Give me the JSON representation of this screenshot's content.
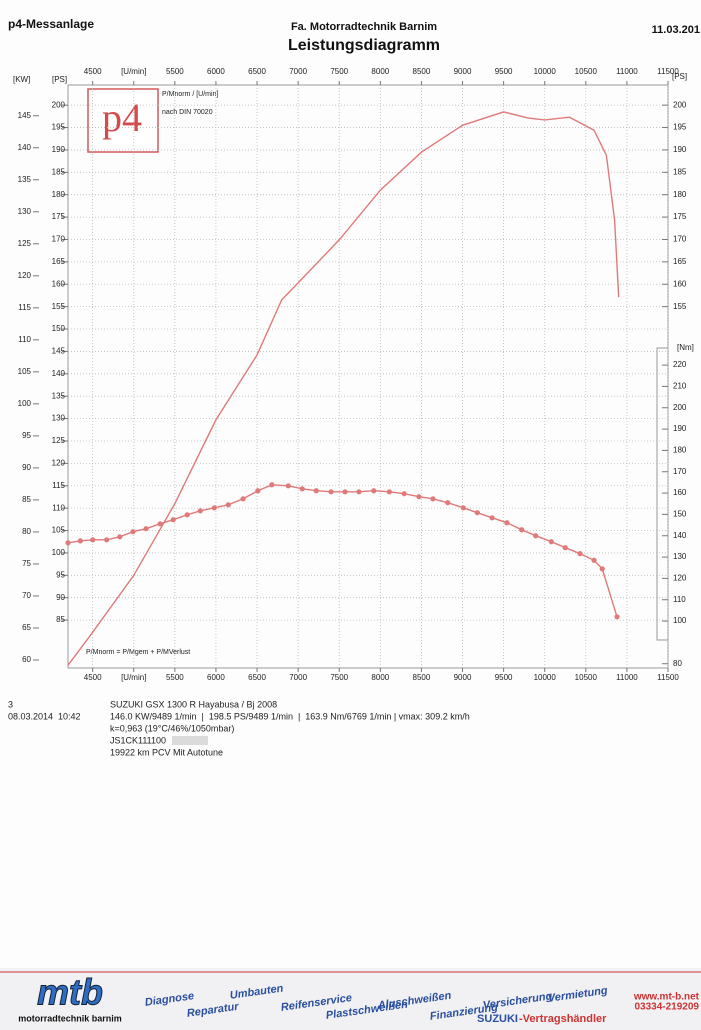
{
  "header": {
    "left": "p4-Messanlage",
    "company": "Fa. Motorradtechnik Barnim",
    "date": "11.03.201"
  },
  "logo": "p4",
  "chart_data": {
    "type": "line",
    "title": "Leistungsdiagramm",
    "grid": true,
    "xlim": [
      4200,
      11500
    ],
    "xticks": [
      4500,
      {
        "value": 5000,
        "label": "[U/min]"
      },
      5500,
      6000,
      6500,
      7000,
      7500,
      8000,
      8500,
      9000,
      9500,
      10000,
      10500,
      11000,
      11500
    ],
    "y_label": "[KW]",
    "ylim": [
      58.75,
      149.8
    ],
    "yticks": [
      145,
      140,
      135,
      130,
      125,
      120,
      115,
      110,
      105,
      100,
      95,
      90,
      85,
      80,
      75,
      70,
      65,
      60
    ],
    "y2_label": "[PS]",
    "y2lim": [
      74.3,
      204.5
    ],
    "y2ticks": [
      200,
      195,
      190,
      185,
      180,
      175,
      170,
      165,
      160,
      155,
      150,
      145,
      140,
      135,
      130,
      125,
      120,
      115,
      110,
      105,
      100,
      95,
      90,
      85
    ],
    "y2_label_right": "[PS]",
    "y2ticks_right": [
      200,
      195,
      190,
      185,
      180,
      175,
      170,
      165,
      160,
      155
    ],
    "y3_label": "[Nm]",
    "y3lim": [
      78,
      351.3
    ],
    "y3ticks": [
      220,
      210,
      200,
      190,
      180,
      170,
      160,
      150,
      140,
      130,
      120,
      110,
      100,
      80
    ],
    "annotations": [
      "nach DIN 70020",
      "P/Mnorm = P/Mgem + P/MVerlust"
    ],
    "series": [
      {
        "name": "P/Mnorm / [U/min]",
        "axis": "y2",
        "color": "#e07a7a",
        "x": [
          4200,
          4500,
          5000,
          5500,
          6000,
          6500,
          6800,
          7000,
          7500,
          8000,
          8500,
          9000,
          9500,
          9800,
          10000,
          10300,
          10600,
          10750,
          10850,
          10900
        ],
        "values": [
          74.9,
          82.3,
          95.0,
          111.0,
          129.7,
          144.2,
          156.5,
          160.3,
          169.9,
          181.0,
          189.5,
          195.5,
          198.5,
          197.1,
          196.7,
          197.3,
          194.4,
          188.8,
          174.3,
          157.1
        ]
      },
      {
        "axis": "y3",
        "color": "#e07a7a",
        "markers": true,
        "x": [
          4200,
          4350,
          4500,
          4670,
          4830,
          4990,
          5150,
          5320,
          5480,
          5650,
          5810,
          5980,
          6150,
          6330,
          6510,
          6680,
          6880,
          7050,
          7220,
          7400,
          7570,
          7740,
          7920,
          8110,
          8290,
          8470,
          8640,
          8820,
          9010,
          9180,
          9360,
          9540,
          9720,
          9890,
          10080,
          10250,
          10430,
          10600,
          10700,
          10880
        ],
        "values": [
          136.7,
          137.6,
          138.1,
          138.1,
          139.5,
          141.9,
          143.3,
          145.6,
          147.5,
          149.8,
          151.7,
          153.1,
          154.5,
          157.3,
          161.1,
          163.9,
          163.4,
          162.0,
          161.1,
          160.6,
          160.6,
          160.6,
          161.1,
          160.6,
          159.7,
          158.3,
          157.3,
          155.5,
          153.1,
          150.8,
          148.4,
          146.1,
          142.8,
          140.0,
          137.2,
          134.4,
          131.6,
          128.5,
          124.5,
          102.0
        ]
      }
    ]
  },
  "info": {
    "page": "3",
    "date": "08.03.2014  10:42",
    "vehicle": "SUZUKI GSX 1300 R Hayabusa / Bj 2008",
    "summary": "146.0 KW/9489 1/min  |  198.5 PS/9489 1/min  |  163.9 Nm/6769 1/min | vmax: 309.2 km/h",
    "conditions": "k=0,963 (19°C/46%/1050mbar)",
    "vin": "JS1CK111100",
    "mileage": "19922 km PCV Mit Autotune"
  },
  "footer": {
    "logo": "mtb",
    "logo_sub": "motorradtechnik barnim",
    "services": [
      "Diagnose",
      "Reparatur",
      "Umbauten",
      "Reifenservice",
      "Plastschweißen",
      "Aluschweißen",
      "Finanzierung",
      "Versicherung",
      "Vermietung"
    ],
    "web": "www.mt-b.net",
    "phone": "03334-219209",
    "brand": "SUZUKI",
    "brand_suffix": "-Vertragshändler"
  }
}
